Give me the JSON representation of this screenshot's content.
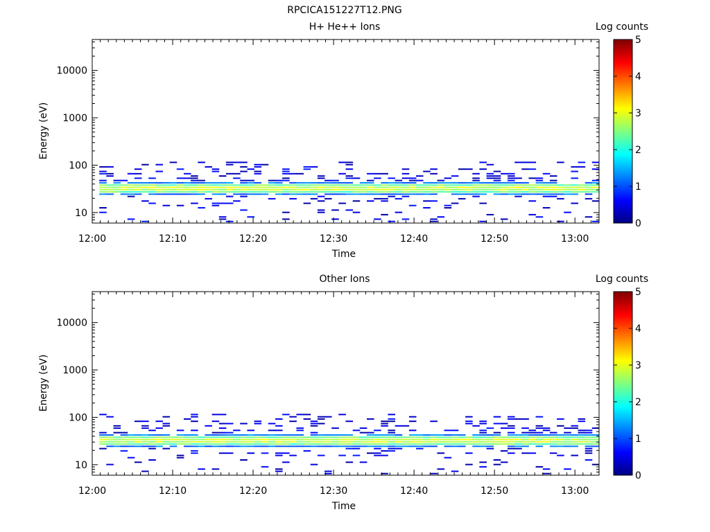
{
  "figure_title": "RPCICA151227T12.PNG",
  "chart_data": [
    {
      "type": "heatmap",
      "title": "H+ He++ Ions",
      "xlabel": "Time",
      "ylabel": "Energy (eV)",
      "x_ticks": [
        "12:00",
        "12:10",
        "12:20",
        "12:30",
        "12:40",
        "12:50",
        "13:00"
      ],
      "xlim": [
        "12:00",
        "13:03"
      ],
      "y_scale": "log",
      "ylim": [
        6,
        45000
      ],
      "y_ticks": [
        "10",
        "100",
        "1000",
        "10000"
      ],
      "colorbar": {
        "label": "Log counts",
        "ticks": [
          "0",
          "1",
          "2",
          "3",
          "4",
          "5"
        ],
        "range": [
          0,
          5
        ]
      },
      "band": {
        "center_eV": 30,
        "peak_log_counts": 3.0,
        "edge_log_counts": 1.5
      },
      "seed": 7
    },
    {
      "type": "heatmap",
      "title": "Other Ions",
      "xlabel": "Time",
      "ylabel": "Energy (eV)",
      "x_ticks": [
        "12:00",
        "12:10",
        "12:20",
        "12:30",
        "12:40",
        "12:50",
        "13:00"
      ],
      "xlim": [
        "12:00",
        "13:03"
      ],
      "y_scale": "log",
      "ylim": [
        6,
        45000
      ],
      "y_ticks": [
        "10",
        "100",
        "1000",
        "10000"
      ],
      "colorbar": {
        "label": "Log counts",
        "ticks": [
          "0",
          "1",
          "2",
          "3",
          "4",
          "5"
        ],
        "range": [
          0,
          5
        ]
      },
      "band": {
        "center_eV": 30,
        "peak_log_counts": 3.0,
        "edge_log_counts": 1.5
      },
      "seed": 21
    }
  ]
}
